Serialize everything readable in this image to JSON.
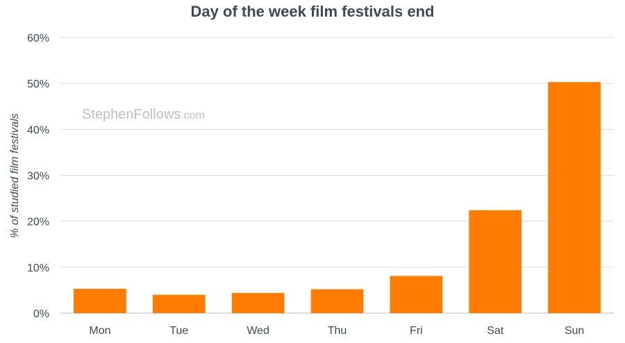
{
  "chart_data": {
    "type": "bar",
    "title": "Day of the week film festivals end",
    "xlabel": "",
    "ylabel": "% of studied film festivals",
    "categories": [
      "Mon",
      "Tue",
      "Wed",
      "Thu",
      "Fri",
      "Sat",
      "Sun"
    ],
    "values": [
      5.3,
      4.0,
      4.4,
      5.2,
      8.1,
      22.4,
      50.3
    ],
    "ylim": [
      0,
      60
    ],
    "yticks": [
      "0%",
      "10%",
      "20%",
      "30%",
      "40%",
      "50%",
      "60%"
    ],
    "grid": true,
    "bar_color": "#ff7c00"
  },
  "watermark": {
    "main": "StephenFollows",
    "suffix": ".com"
  }
}
